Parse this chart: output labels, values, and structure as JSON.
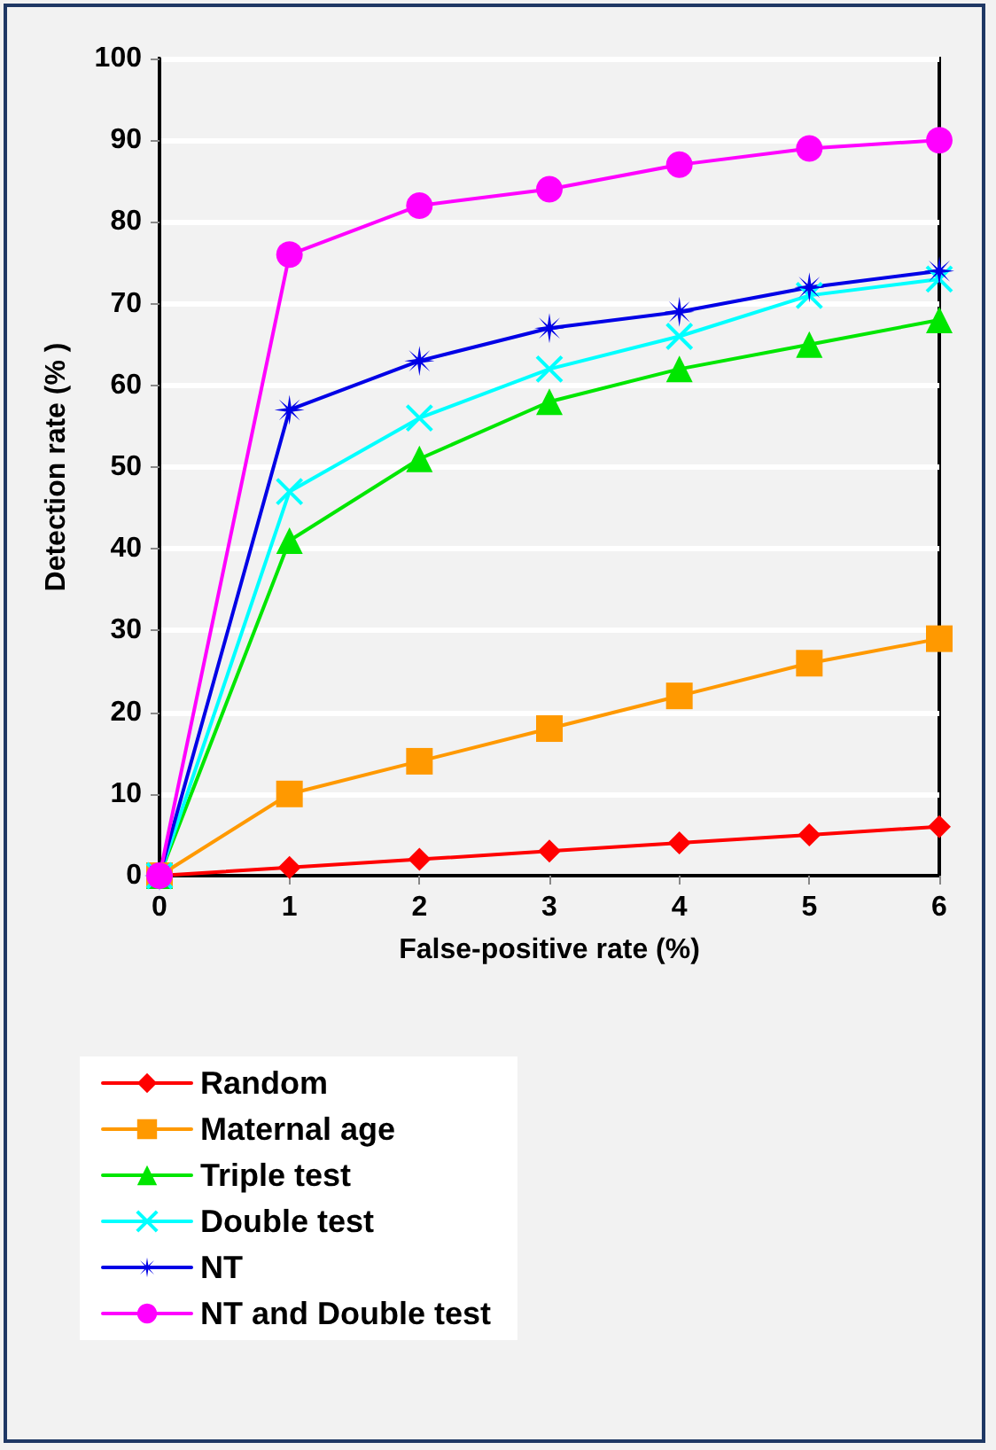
{
  "chart_data": {
    "type": "line",
    "xlabel": "False-positive rate (%)",
    "ylabel": "Detection rate (% )",
    "x": [
      0,
      1,
      2,
      3,
      4,
      5,
      6
    ],
    "xlim": [
      0,
      6
    ],
    "xticks": [
      0,
      1,
      2,
      3,
      4,
      5,
      6
    ],
    "ylim": [
      0,
      100
    ],
    "yticks": [
      0,
      10,
      20,
      30,
      40,
      50,
      60,
      70,
      80,
      90,
      100
    ],
    "grid": "y",
    "legend": "bottom left",
    "line_style": "solid",
    "series": [
      {
        "name": "Random",
        "color": "#ff0000",
        "marker": "diamond",
        "values": [
          0,
          1,
          2,
          3,
          4,
          5,
          6
        ]
      },
      {
        "name": "Maternal age",
        "color": "#ff9900",
        "marker": "square",
        "values": [
          0,
          10,
          14,
          18,
          22,
          26,
          29
        ]
      },
      {
        "name": "Triple test",
        "color": "#00e600",
        "marker": "triangle",
        "values": [
          0,
          41,
          51,
          58,
          62,
          65,
          68
        ]
      },
      {
        "name": "Double test",
        "color": "#00ffff",
        "marker": "cross",
        "values": [
          0,
          47,
          56,
          62,
          66,
          71,
          73
        ]
      },
      {
        "name": "NT",
        "color": "#0000e6",
        "marker": "star",
        "values": [
          0,
          57,
          63,
          67,
          69,
          72,
          74
        ]
      },
      {
        "name": "NT and Double test",
        "color": "#ff00ff",
        "marker": "circle",
        "values": [
          0,
          76,
          82,
          84,
          87,
          89,
          90
        ]
      }
    ]
  }
}
